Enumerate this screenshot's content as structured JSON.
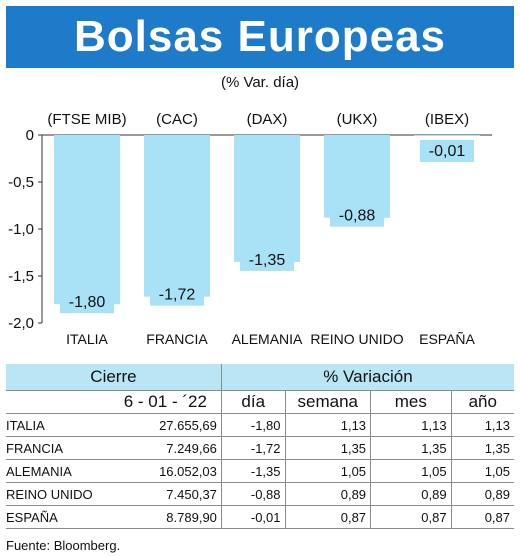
{
  "header": {
    "title": "Bolsas Europeas",
    "subtitle": "(% Var. día)"
  },
  "chart_data": {
    "type": "bar",
    "categories": [
      "ITALIA",
      "FRANCIA",
      "ALEMANIA",
      "REINO UNIDO",
      "ESPAÑA"
    ],
    "index_labels": [
      "(FTSE MIB)",
      "(CAC)",
      "(DAX)",
      "(UKX)",
      "(IBEX)"
    ],
    "values": [
      -1.8,
      -1.72,
      -1.35,
      -0.88,
      -0.01
    ],
    "value_labels": [
      "-1,80",
      "-1,72",
      "-1,35",
      "-0,88",
      "-0,01"
    ],
    "y_ticks": [
      0,
      -0.5,
      -1.0,
      -1.5,
      -2.0
    ],
    "y_tick_labels": [
      "0",
      "-0,5",
      "-1,0",
      "-1,5",
      "-2,0"
    ],
    "ylim": [
      -2.0,
      0
    ],
    "bar_color": "#a9e2f7",
    "grid": false
  },
  "table": {
    "group_headers": [
      "Cierre",
      "% Variación"
    ],
    "date_label": "6 - 01 - ´22",
    "columns": [
      "día",
      "semana",
      "mes",
      "año"
    ],
    "rows": [
      {
        "name": "ITALIA",
        "close": "27.655,69",
        "dia": "-1,80",
        "semana": "1,13",
        "mes": "1,13",
        "ano": "1,13"
      },
      {
        "name": "FRANCIA",
        "close": "7.249,66",
        "dia": "-1,72",
        "semana": "1,35",
        "mes": "1,35",
        "ano": "1,35"
      },
      {
        "name": "ALEMANIA",
        "close": "16.052,03",
        "dia": "-1,35",
        "semana": "1,05",
        "mes": "1,05",
        "ano": "1,05"
      },
      {
        "name": "REINO UNIDO",
        "close": "7.450,37",
        "dia": "-0,88",
        "semana": "0,89",
        "mes": "0,89",
        "ano": "0,89"
      },
      {
        "name": "ESPAÑA",
        "close": "8.789,90",
        "dia": "-0,01",
        "semana": "0,87",
        "mes": "0,87",
        "ano": "0,87"
      }
    ]
  },
  "footer": {
    "source": "Fuente: Bloomberg."
  }
}
